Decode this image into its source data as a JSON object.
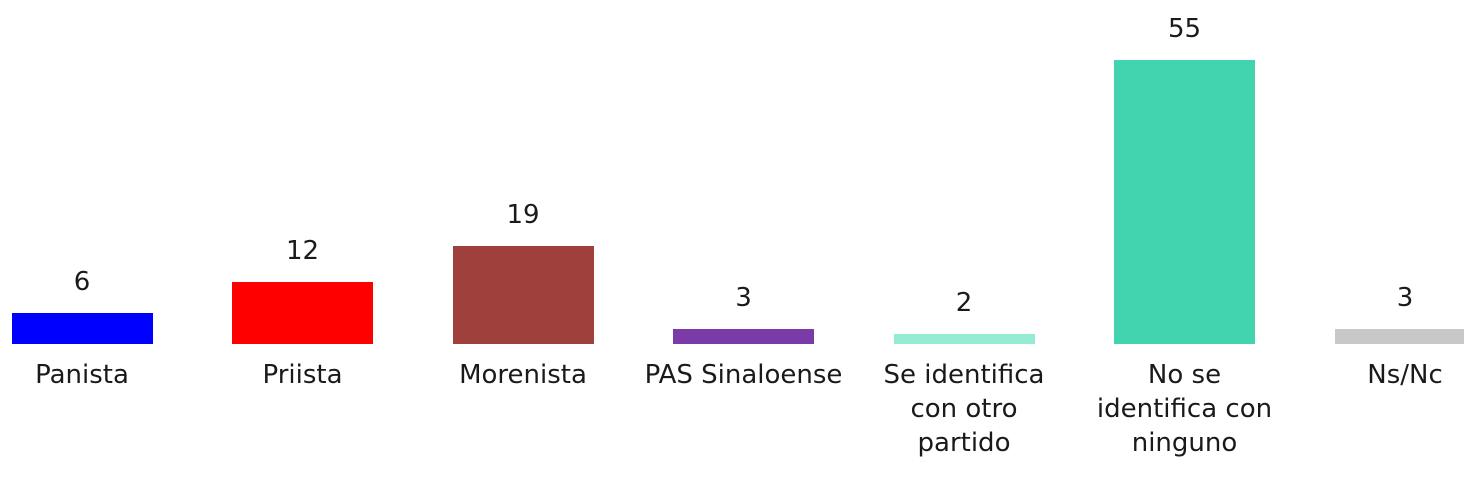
{
  "chart_data": {
    "type": "bar",
    "categories": [
      "Panista",
      "Priista",
      "Morenista",
      "PAS Sinaloense",
      "Se identifica con otro partido",
      "No se identifica con ninguno",
      "Ns/Nc"
    ],
    "values": [
      6,
      12,
      19,
      3,
      2,
      55,
      3
    ],
    "colors": [
      "#0000ff",
      "#ff0000",
      "#a0403c",
      "#7a3aa8",
      "#94ecd4",
      "#42d4ae",
      "#c8c8c8"
    ]
  }
}
